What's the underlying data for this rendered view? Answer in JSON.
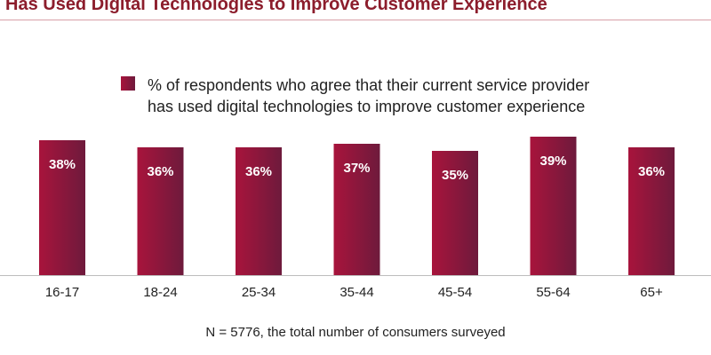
{
  "page": {
    "title": "Has Used Digital Technologies to Improve Customer Experience",
    "footnote": "N = 5776, the total number of consumers surveyed"
  },
  "chart_data": {
    "type": "bar",
    "legend": "% of respondents who agree that their current service provider\nhas used digital technologies to improve customer experience",
    "legend_position": "top",
    "categories": [
      "16-17",
      "18-24",
      "25-34",
      "35-44",
      "45-54",
      "55-64",
      "65+"
    ],
    "series": [
      {
        "values": [
          38,
          36,
          36,
          37,
          35,
          39,
          36
        ],
        "labels": [
          "38%",
          "36%",
          "36%",
          "37%",
          "35%",
          "39%",
          "36%"
        ]
      }
    ],
    "ylim": [
      0,
      40
    ],
    "grid": false,
    "colors": {
      "bar_light": "#a8143c",
      "bar_dark": "#6e1a3c",
      "label": "#ffffff",
      "title": "#8c1d2c"
    }
  }
}
